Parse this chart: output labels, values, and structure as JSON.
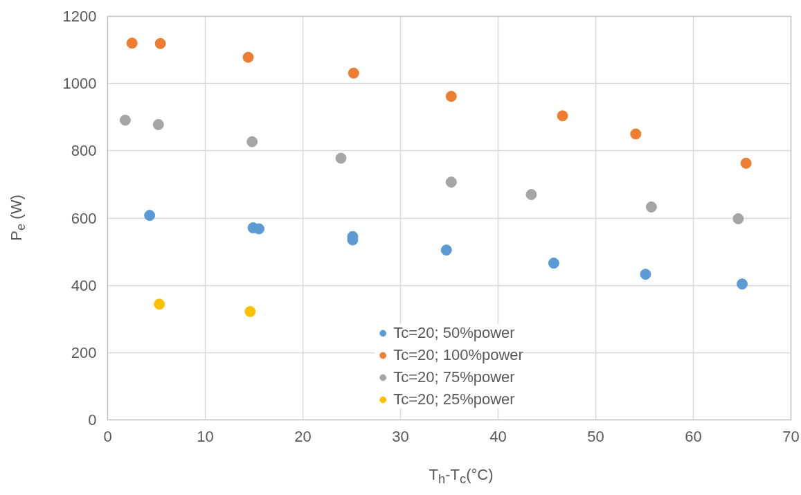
{
  "chart_data": {
    "type": "scatter",
    "xlabel": "T$_{h}$-T$_{c}$(°C)",
    "ylabel": "P$_{e}$ (W)",
    "xlim": [
      0,
      70
    ],
    "xticks": [
      0,
      10,
      20,
      30,
      40,
      50,
      60,
      70
    ],
    "ylim": [
      0,
      1200
    ],
    "yticks": [
      0,
      200,
      400,
      600,
      800,
      1000,
      1200
    ],
    "grid": true,
    "legend": "bottom",
    "marker": "circle",
    "series": [
      {
        "name": "Tc=20; 50%power",
        "color": "#5b9bd5",
        "x": [
          4.3,
          14.9,
          15.5,
          25.1,
          25.1,
          34.7,
          45.7,
          55.1,
          65.0
        ],
        "values": [
          608,
          571,
          568,
          545,
          535,
          505,
          466,
          433,
          404
        ]
      },
      {
        "name": "Tc=20; 100%power",
        "color": "#ed7d31",
        "x": [
          2.5,
          5.4,
          14.4,
          25.2,
          35.2,
          46.6,
          54.1,
          65.4
        ],
        "values": [
          1120,
          1119,
          1078,
          1031,
          962,
          904,
          850,
          763
        ]
      },
      {
        "name": "Tc=20; 75%power",
        "color": "#a5a5a5",
        "x": [
          1.8,
          5.2,
          14.8,
          23.9,
          35.2,
          43.4,
          55.7,
          64.6
        ],
        "values": [
          891,
          878,
          827,
          778,
          707,
          670,
          633,
          598
        ]
      },
      {
        "name": "Tc=20; 25%power",
        "color": "#ffc000",
        "x": [
          5.3,
          14.6
        ],
        "values": [
          344,
          322
        ]
      }
    ]
  }
}
